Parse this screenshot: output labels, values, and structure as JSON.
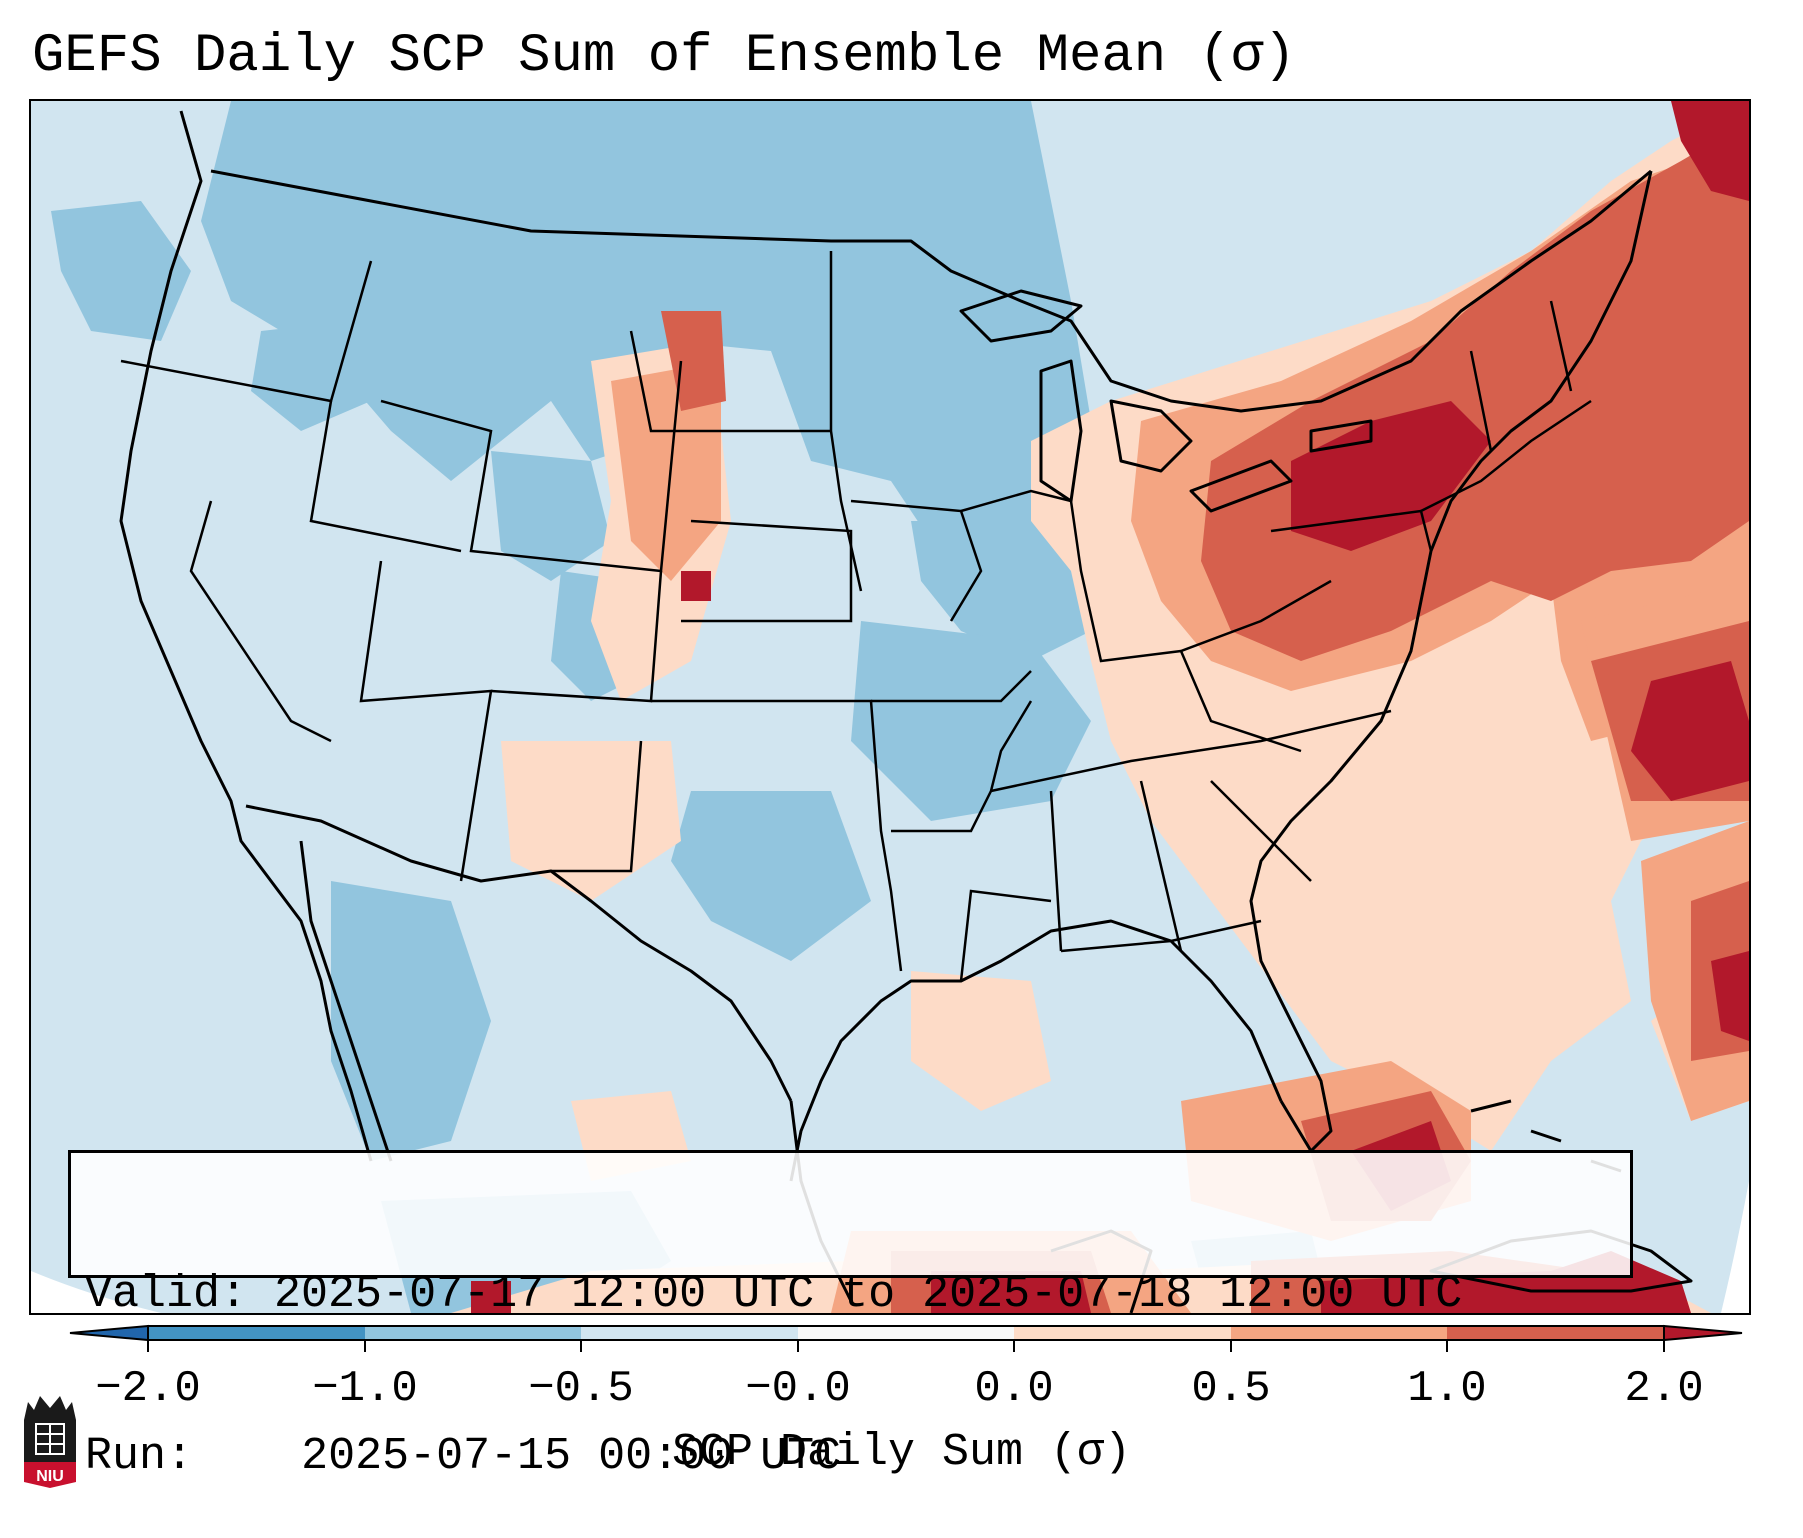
{
  "title": "GEFS Daily SCP Sum of Ensemble Mean (σ)",
  "info": {
    "valid_label": "Valid:",
    "valid_value": "2025-07-17 12:00 UTC to 2025-07-18 12:00 UTC",
    "run_label": "Run:",
    "run_value": "2025-07-15 00:00 UTC"
  },
  "colorbar": {
    "label": "SCP Daily Sum (σ)",
    "ticks": [
      "−2.0",
      "−1.0",
      "−0.5",
      "−0.0",
      "0.0",
      "0.5",
      "1.0",
      "2.0"
    ],
    "bin_colors": [
      "#4393c3",
      "#92c5de",
      "#d1e5f0",
      "#f7f7f7",
      "#fddbc7",
      "#f4a582",
      "#d6604d"
    ],
    "under_color": "#2166ac",
    "over_color": "#b2182b"
  },
  "map_colors": {
    "ocean_low": "#d1e5f0",
    "mid_blue": "#92c5de",
    "light_red": "#fddbc7",
    "mid_red": "#f4a582",
    "red": "#d6604d",
    "dark_red": "#b2182b",
    "outline": "#000000"
  },
  "logo": {
    "text": "NIU"
  }
}
